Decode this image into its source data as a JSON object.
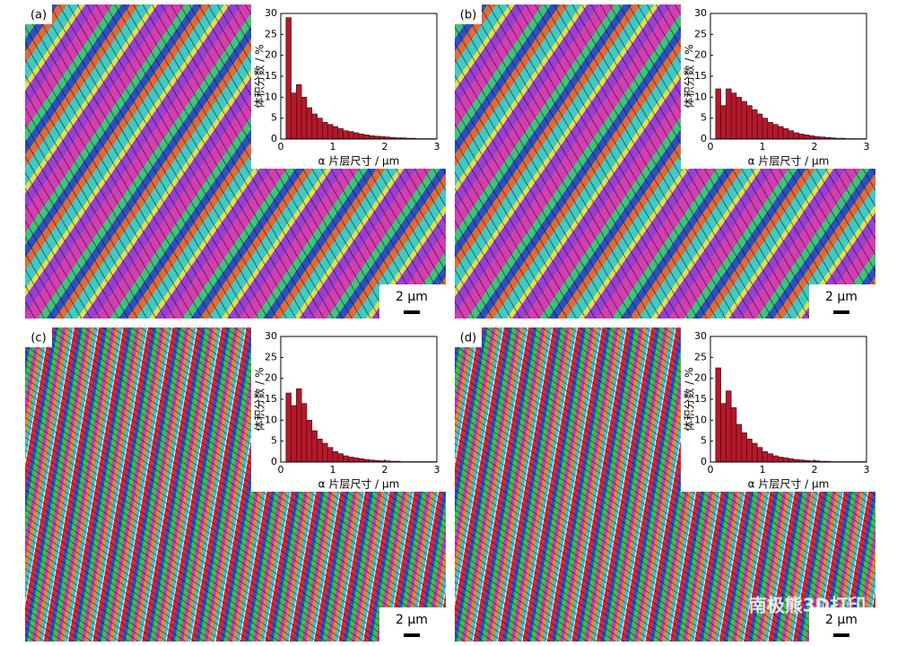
{
  "chart_data": [
    {
      "type": "histogram",
      "label": "(a)",
      "scale_bar": "2 μm",
      "xlabel": "α 片层尺寸 / μm",
      "ylabel": "体积分数 / %",
      "color": "#b5182b",
      "bins": [
        0.1,
        0.2,
        0.3,
        0.4,
        0.5,
        0.6,
        0.7,
        0.8,
        0.9,
        1.0,
        1.1,
        1.2,
        1.3,
        1.4,
        1.5,
        1.6,
        1.7,
        1.8,
        1.9,
        2.0,
        2.1,
        2.2,
        2.3,
        2.4,
        2.5,
        2.6,
        2.7,
        2.8,
        2.9,
        3.0
      ],
      "values": [
        29,
        11,
        13,
        10,
        7.5,
        6,
        5,
        4,
        3.5,
        3,
        2.5,
        2,
        1.8,
        1.5,
        1.2,
        1,
        0.8,
        0.7,
        0.6,
        0.5,
        0.4,
        0.3,
        0.3,
        0.2,
        0.2,
        0.1,
        0.1,
        0.1,
        0.1
      ],
      "xlim": [
        0,
        3
      ],
      "ylim": [
        0,
        30
      ],
      "xticks": [
        0,
        1,
        2,
        3
      ],
      "yticks": [
        0,
        5,
        10,
        15,
        20,
        25,
        30
      ]
    },
    {
      "type": "histogram",
      "label": "(b)",
      "scale_bar": "2 μm",
      "xlabel": "α 片层尺寸 / μm",
      "ylabel": "体积分数 / %",
      "color": "#b5182b",
      "bins": [
        0.1,
        0.2,
        0.3,
        0.4,
        0.5,
        0.6,
        0.7,
        0.8,
        0.9,
        1.0,
        1.1,
        1.2,
        1.3,
        1.4,
        1.5,
        1.6,
        1.7,
        1.8,
        1.9,
        2.0,
        2.1,
        2.2,
        2.3,
        2.4,
        2.5,
        2.6,
        2.7,
        2.8,
        2.9,
        3.0
      ],
      "values": [
        12,
        8,
        12,
        11,
        10,
        9,
        8,
        7,
        6,
        5,
        4,
        3.5,
        3,
        2.5,
        2,
        1.5,
        1.2,
        1,
        0.8,
        0.6,
        0.5,
        0.4,
        0.3,
        0.2,
        0.2,
        0.1,
        0.1,
        0.1,
        0.1
      ],
      "xlim": [
        0,
        3
      ],
      "ylim": [
        0,
        30
      ],
      "xticks": [
        0,
        1,
        2,
        3
      ],
      "yticks": [
        0,
        5,
        10,
        15,
        20,
        25,
        30
      ]
    },
    {
      "type": "histogram",
      "label": "(c)",
      "scale_bar": "2 μm",
      "xlabel": "α 片层尺寸 / μm",
      "ylabel": "体积分数 / %",
      "color": "#b5182b",
      "bins": [
        0.1,
        0.2,
        0.3,
        0.4,
        0.5,
        0.6,
        0.7,
        0.8,
        0.9,
        1.0,
        1.1,
        1.2,
        1.3,
        1.4,
        1.5,
        1.6,
        1.7,
        1.8,
        1.9,
        2.0,
        2.1,
        2.2,
        2.3,
        2.4,
        2.5,
        2.6,
        2.7,
        2.8,
        2.9,
        3.0
      ],
      "values": [
        16.5,
        13.5,
        17.5,
        14,
        10,
        7.5,
        5.5,
        4.5,
        3.5,
        2.5,
        2,
        1.5,
        1.2,
        1,
        0.8,
        0.6,
        0.5,
        0.4,
        0.3,
        0.3,
        0.2,
        0.2,
        0.1,
        0.1,
        0.1,
        0.1,
        0.1,
        0.1,
        0.1
      ],
      "xlim": [
        0,
        3
      ],
      "ylim": [
        0,
        30
      ],
      "xticks": [
        0,
        1,
        2,
        3
      ],
      "yticks": [
        0,
        5,
        10,
        15,
        20,
        25,
        30
      ]
    },
    {
      "type": "histogram",
      "label": "(d)",
      "scale_bar": "2 μm",
      "xlabel": "α 片层尺寸 / μm",
      "ylabel": "体积分数 / %",
      "color": "#b5182b",
      "bins": [
        0.1,
        0.2,
        0.3,
        0.4,
        0.5,
        0.6,
        0.7,
        0.8,
        0.9,
        1.0,
        1.1,
        1.2,
        1.3,
        1.4,
        1.5,
        1.6,
        1.7,
        1.8,
        1.9,
        2.0,
        2.1,
        2.2,
        2.3,
        2.4,
        2.5,
        2.6,
        2.7,
        2.8,
        2.9,
        3.0
      ],
      "values": [
        22.5,
        14,
        17,
        13,
        9,
        7,
        5.5,
        4.5,
        3.5,
        2.5,
        2,
        1.5,
        1.2,
        1,
        0.8,
        0.6,
        0.5,
        0.4,
        0.3,
        0.3,
        0.2,
        0.2,
        0.1,
        0.1,
        0.1,
        0.1,
        0.1,
        0.1,
        0.1
      ],
      "xlim": [
        0,
        3
      ],
      "ylim": [
        0,
        30
      ],
      "xticks": [
        0,
        1,
        2,
        3
      ],
      "yticks": [
        0,
        5,
        10,
        15,
        20,
        25,
        30
      ]
    }
  ],
  "watermark": "南极熊3D打印"
}
